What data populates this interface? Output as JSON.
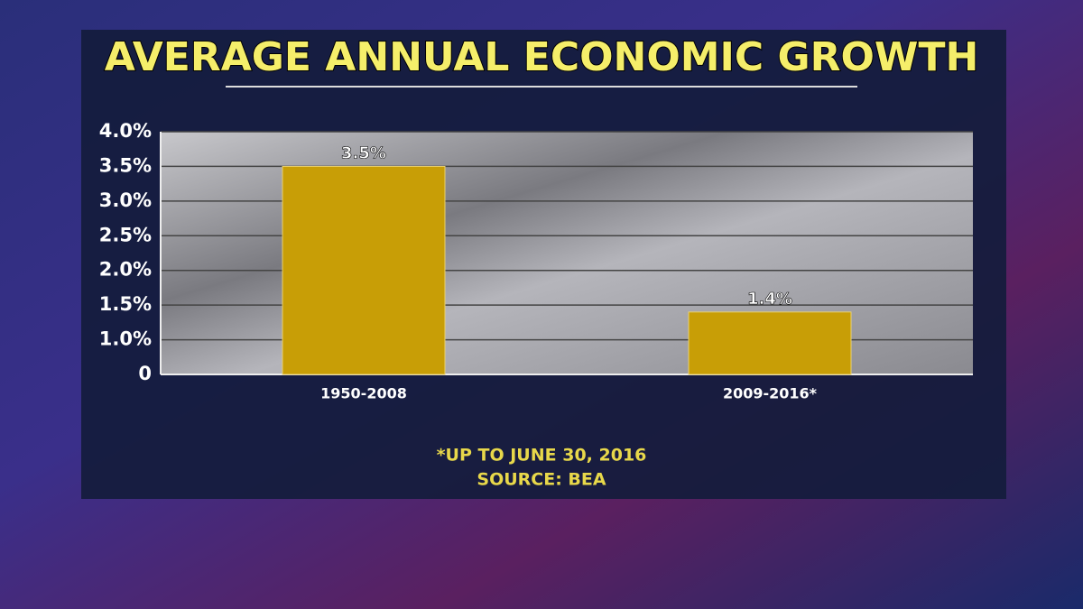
{
  "chart_data": {
    "type": "bar",
    "title": "AVERAGE ANNUAL ECONOMIC GROWTH",
    "categories": [
      "1950-2008",
      "2009-2016*"
    ],
    "values": [
      3.5,
      1.4
    ],
    "value_labels": [
      "3.5%",
      "1.4%"
    ],
    "color": "#c89e06",
    "ylim": [
      0,
      4
    ],
    "yticks": [
      0,
      {
        "value": 1.0,
        "label": "1.0%"
      },
      {
        "value": 1.5,
        "label": "1.5%"
      },
      {
        "value": 2.0,
        "label": "2.0%"
      },
      {
        "value": 2.5,
        "label": "2.5%"
      },
      {
        "value": 3.0,
        "label": "3.0%"
      },
      {
        "value": 3.5,
        "label": "3.5%"
      },
      {
        "value": 4.0,
        "label": "4.0%"
      }
    ],
    "grid": true,
    "footnote": "*UP TO JUNE 30, 2016",
    "source": "SOURCE: BEA"
  }
}
